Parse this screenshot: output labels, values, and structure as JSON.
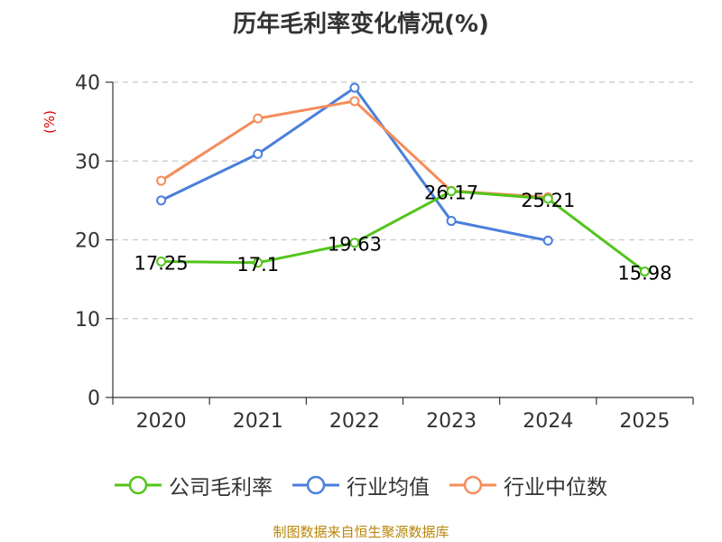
{
  "chart_data": {
    "type": "line",
    "title": "历年毛利率变化情况(%)",
    "ylabel": "(%)",
    "xlabel": "",
    "categories": [
      "2020",
      "2021",
      "2022",
      "2023",
      "2024",
      "2025"
    ],
    "ylim": [
      0,
      40
    ],
    "yticks": [
      0,
      10,
      20,
      30,
      40
    ],
    "grid": true,
    "legend_position": "bottom",
    "series": [
      {
        "name": "公司毛利率",
        "color": "#52c41a",
        "values": [
          17.25,
          17.1,
          19.63,
          26.17,
          25.21,
          15.98
        ],
        "labels": [
          "17.25",
          "17.1",
          "19.63",
          "26.17",
          "25.21",
          "15.98"
        ]
      },
      {
        "name": "行业均值",
        "color": "#4a7fdc",
        "values": [
          25.0,
          30.9,
          39.3,
          22.4,
          19.9,
          null
        ]
      },
      {
        "name": "行业中位数",
        "color": "#f58c5a",
        "values": [
          27.5,
          35.4,
          37.6,
          26.2,
          25.4,
          null
        ]
      }
    ]
  },
  "source": "制图数据来自恒生聚源数据库"
}
